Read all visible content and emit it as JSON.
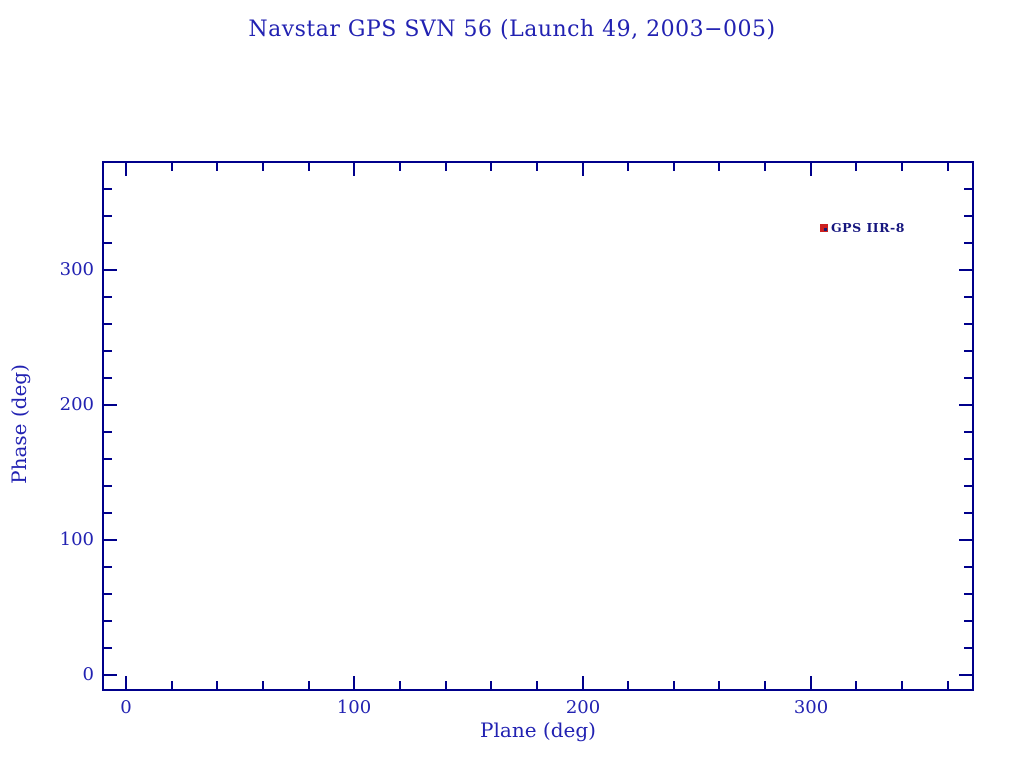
{
  "colors": {
    "background": "#ffffff",
    "axis": "#00008b",
    "text_blue": "#2222b2",
    "marker_red": "#cc2020",
    "marker_dot": "#1a1a70",
    "point_label_navy": "#15157e"
  },
  "chart_data": {
    "type": "scatter",
    "title": "Navstar GPS SVN 56 (Launch 49, 2003−005)",
    "xlabel": "Plane (deg)",
    "ylabel": "Phase (deg)",
    "xlim": [
      -10.5,
      371.5
    ],
    "ylim": [
      -11.9,
      380.7
    ],
    "xticks_major": [
      0,
      100,
      200,
      300
    ],
    "yticks_major": [
      0,
      100,
      200,
      300
    ],
    "minor_tick_interval": 20,
    "tick_style": "inward-all-four-sides",
    "grid": false,
    "legend": "none",
    "points": [
      {
        "label": "GPS IIR-8",
        "x": 306,
        "y": 331,
        "marker": "red-square"
      }
    ]
  }
}
